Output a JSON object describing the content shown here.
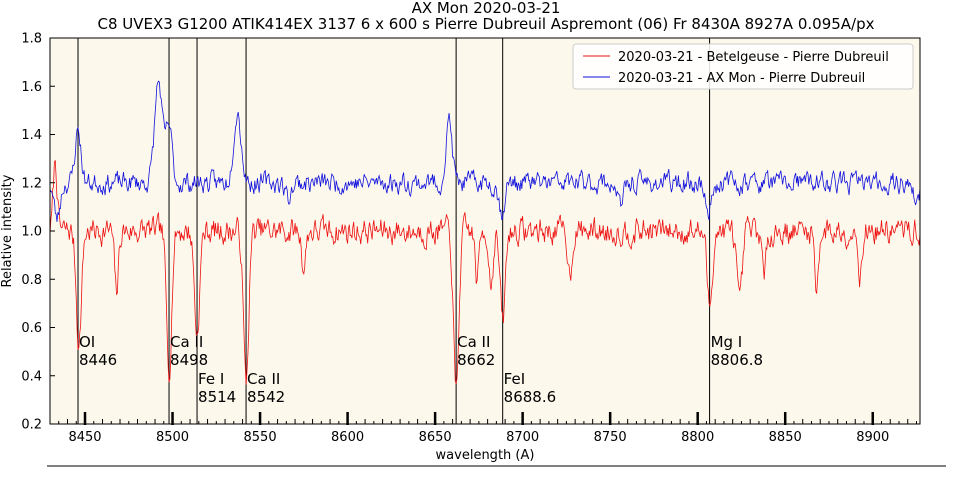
{
  "chart_data": {
    "type": "line",
    "title": "AX Mon 2020-03-21",
    "subtitle": "C8 UVEX3 G1200 ATIK414EX 3137 6 x 600 s Pierre Dubreuil Aspremont (06) Fr 8430A 8927A 0.095A/px",
    "xlabel": "wavelength (A)",
    "ylabel": "Relative intensity",
    "xlim": [
      8430,
      8927
    ],
    "ylim": [
      0.2,
      1.8
    ],
    "xticks": [
      8450,
      8500,
      8550,
      8600,
      8650,
      8700,
      8750,
      8800,
      8850,
      8900
    ],
    "yticks": [
      0.2,
      0.4,
      0.6,
      0.8,
      1.0,
      1.2,
      1.4,
      1.6,
      1.8
    ],
    "grid": false,
    "legend_position": "top-right",
    "background_color": "#fcf8ec",
    "series": [
      {
        "name": "2020-03-21 - Betelgeuse - Pierre Dubreuil",
        "color": "#ee1111",
        "baseline": 1.0,
        "features": [
          {
            "x": 8433,
            "y": 1.29
          },
          {
            "x": 8446.5,
            "y": 0.54
          },
          {
            "x": 8468,
            "y": 0.74
          },
          {
            "x": 8498,
            "y": 0.43
          },
          {
            "x": 8514,
            "y": 0.57
          },
          {
            "x": 8542,
            "y": 0.37
          },
          {
            "x": 8575,
            "y": 0.85
          },
          {
            "x": 8662,
            "y": 0.32
          },
          {
            "x": 8674,
            "y": 0.8
          },
          {
            "x": 8682,
            "y": 0.78
          },
          {
            "x": 8688.6,
            "y": 0.62
          },
          {
            "x": 8727,
            "y": 0.82
          },
          {
            "x": 8806.8,
            "y": 0.69
          },
          {
            "x": 8824,
            "y": 0.68
          },
          {
            "x": 8838,
            "y": 0.8
          },
          {
            "x": 8868,
            "y": 0.78
          },
          {
            "x": 8893,
            "y": 0.83
          }
        ]
      },
      {
        "name": "2020-03-21 - AX Mon - Pierre Dubreuil",
        "color": "#1111dd",
        "baseline": 1.2,
        "features": [
          {
            "x": 8434,
            "y": 1.05
          },
          {
            "x": 8446,
            "y": 1.42
          },
          {
            "x": 8492,
            "y": 1.62
          },
          {
            "x": 8498,
            "y": 1.43
          },
          {
            "x": 8537,
            "y": 1.5
          },
          {
            "x": 8566,
            "y": 1.14
          },
          {
            "x": 8658,
            "y": 1.46
          },
          {
            "x": 8688,
            "y": 1.08
          },
          {
            "x": 8756,
            "y": 1.1
          },
          {
            "x": 8806,
            "y": 1.08
          },
          {
            "x": 8925,
            "y": 1.12
          }
        ]
      }
    ],
    "annotations": [
      {
        "name": "OI",
        "line1": "OI",
        "line2": " 8446",
        "x": 8446,
        "row": "upper"
      },
      {
        "name": "Ca II 8498",
        "line1": "Ca II",
        "line2": "8498",
        "x": 8498,
        "row": "upper"
      },
      {
        "name": "Fe I 8514",
        "line1": "Fe I",
        "line2": "8514",
        "x": 8514,
        "row": "lower"
      },
      {
        "name": "Ca II 8542",
        "line1": "Ca II",
        "line2": "8542",
        "x": 8542,
        "row": "lower"
      },
      {
        "name": "Ca II 8662",
        "line1": "Ca II",
        "line2": "8662",
        "x": 8662,
        "row": "upper"
      },
      {
        "name": "FeI 8688.6",
        "line1": "FeI",
        "line2": "8688.6",
        "x": 8688.6,
        "row": "lower"
      },
      {
        "name": "Mg I 8806.8",
        "line1": "Mg I",
        "line2": "8806.8",
        "x": 8806.8,
        "row": "upper"
      }
    ]
  }
}
